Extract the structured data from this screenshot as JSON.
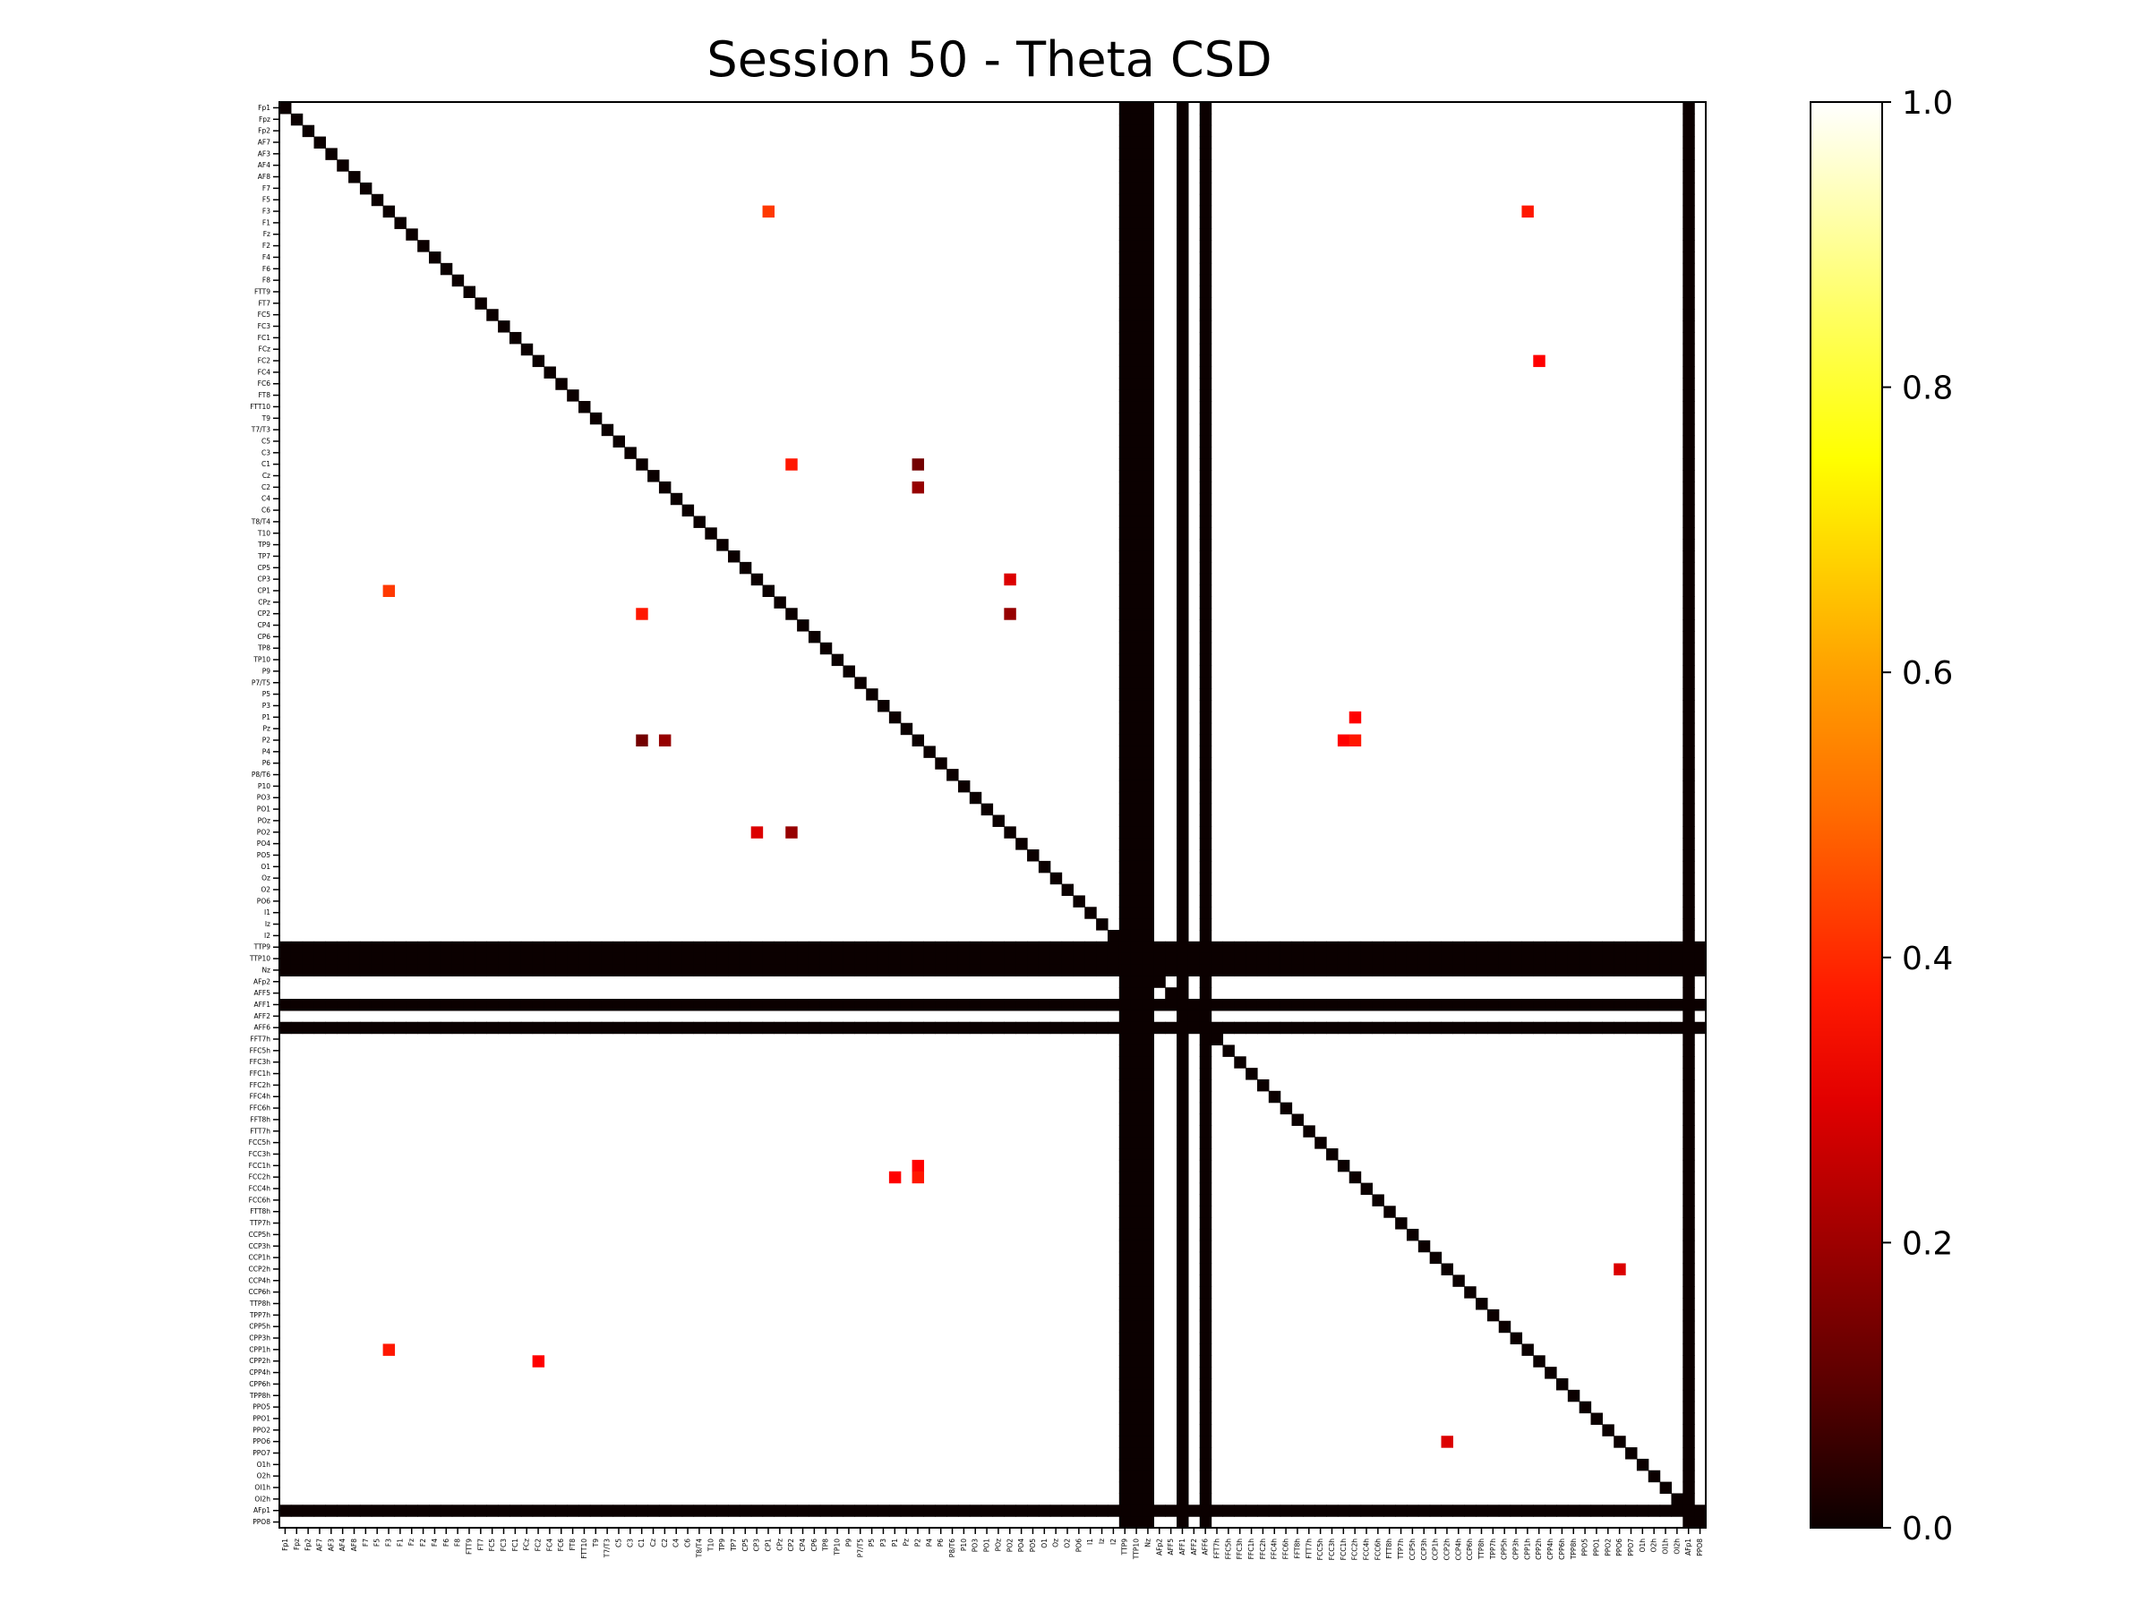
{
  "title": "Session 50 - Theta CSD",
  "chart_data": {
    "type": "heatmap",
    "title": "Session 50 - Theta CSD",
    "xlabel": "",
    "ylabel": "",
    "colormap": "hot",
    "vmin": 0.0,
    "vmax": 1.0,
    "colorbar_ticks": [
      "0.0",
      "0.2",
      "0.4",
      "0.6",
      "0.8",
      "1.0"
    ],
    "colorbar_tick_values": [
      0.0,
      0.2,
      0.4,
      0.6,
      0.8,
      1.0
    ],
    "channels": [
      "Fp1",
      "Fpz",
      "Fp2",
      "AF7",
      "AF3",
      "AF4",
      "AF8",
      "F7",
      "F5",
      "F3",
      "F1",
      "Fz",
      "F2",
      "F4",
      "F6",
      "F8",
      "FTT9",
      "FT7",
      "FC5",
      "FC3",
      "FC1",
      "FCz",
      "FC2",
      "FC4",
      "FC6",
      "FT8",
      "FTT10",
      "T9",
      "T7/T3",
      "C5",
      "C3",
      "C1",
      "Cz",
      "C2",
      "C4",
      "C6",
      "T8/T4",
      "T10",
      "TP9",
      "TP7",
      "CP5",
      "CP3",
      "CP1",
      "CPz",
      "CP2",
      "CP4",
      "CP6",
      "TP8",
      "TP10",
      "P9",
      "P7/T5",
      "P5",
      "P3",
      "P1",
      "Pz",
      "P2",
      "P4",
      "P6",
      "P8/T6",
      "P10",
      "PO3",
      "PO1",
      "POz",
      "PO2",
      "PO4",
      "PO5",
      "O1",
      "Oz",
      "O2",
      "PO6",
      "I1",
      "Iz",
      "I2",
      "TTP9",
      "TTP10",
      "Nz",
      "AFp2",
      "AFF5",
      "AFF1",
      "AFF2",
      "AFF6",
      "FFT7h",
      "FFC5h",
      "FFC3h",
      "FFC1h",
      "FFC2h",
      "FFC4h",
      "FFC6h",
      "FFT8h",
      "FTT7h",
      "FCC5h",
      "FCC3h",
      "FCC1h",
      "FCC2h",
      "FCC4h",
      "FCC6h",
      "FTT8h",
      "TTP7h",
      "CCP5h",
      "CCP3h",
      "CCP1h",
      "CCP2h",
      "CCP4h",
      "CCP6h",
      "TTP8h",
      "TPP7h",
      "CPP5h",
      "CPP3h",
      "CPP1h",
      "CPP2h",
      "CPP4h",
      "CPP6h",
      "TPP8h",
      "PPO5",
      "PPO1",
      "PPO2",
      "PPO6",
      "PPO7",
      "O1h",
      "O2h",
      "OI1h",
      "OI2h",
      "AFp1",
      "PPO8"
    ],
    "zero_rows_cols": [
      "TTP9",
      "TTP10",
      "Nz",
      "AFF1",
      "AFF6",
      "AFp1"
    ],
    "diagonal_value": 0.0,
    "background_value": 1.0,
    "notable_cells": [
      {
        "row": "F3",
        "col": "CP1",
        "value": 0.45
      },
      {
        "row": "C1",
        "col": "P2",
        "value": 0.15
      },
      {
        "row": "CP3",
        "col": "PO2",
        "value": 0.3
      },
      {
        "row": "CP2",
        "col": "C1",
        "value": 0.4
      },
      {
        "row": "PO2",
        "col": "CP2",
        "value": 0.2
      },
      {
        "row": "P2",
        "col": "C2",
        "value": 0.2
      },
      {
        "row": "P1",
        "col": "FCC2h",
        "value": 0.35
      },
      {
        "row": "FC2",
        "col": "CPP2h",
        "value": 0.35
      },
      {
        "row": "FCC1h",
        "col": "P2",
        "value": 0.35
      },
      {
        "row": "FCC2h",
        "col": "P2",
        "value": 0.4
      },
      {
        "row": "CCP2h",
        "col": "PPO6",
        "value": 0.3
      },
      {
        "row": "CPP1h",
        "col": "F3",
        "value": 0.4
      }
    ]
  }
}
